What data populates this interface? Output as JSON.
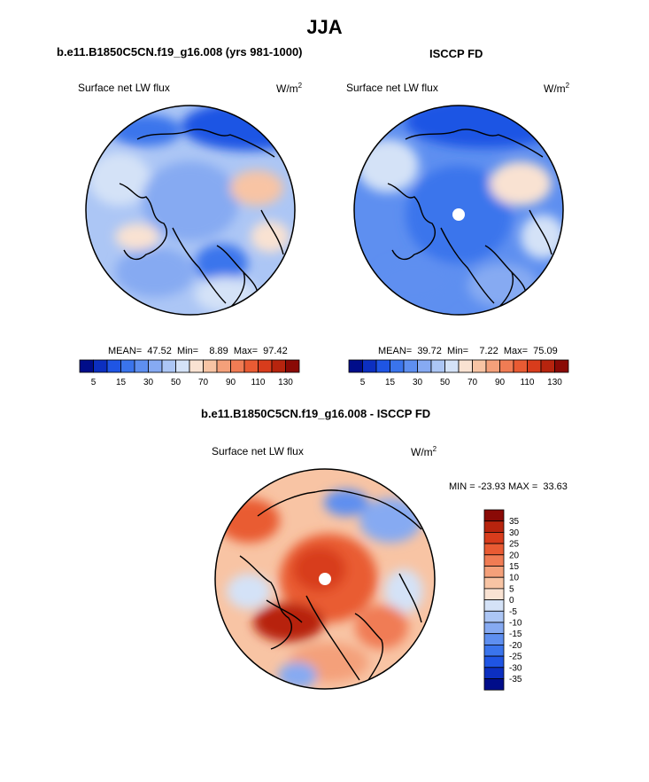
{
  "title": "JJA",
  "panels": [
    {
      "title": "b.e11.B1850C5CN.f19_g16.008 (yrs 981-1000)",
      "variable": "Surface net LW flux",
      "units": "W/m",
      "units_exp": "2",
      "stats": "MEAN=  47.52  Min=    8.89  Max=  97.42"
    },
    {
      "title": "ISCCP FD",
      "variable": "Surface net LW flux",
      "units": "W/m",
      "units_exp": "2",
      "stats": "MEAN=  39.72  Min=    7.22  Max=  75.09"
    }
  ],
  "diff_panel": {
    "title": "b.e11.B1850C5CN.f19_g16.008 - ISCCP FD",
    "variable": "Surface net LW flux",
    "units": "W/m",
    "units_exp": "2",
    "minmax": "MIN = -23.93 MAX =  33.63"
  },
  "chart_data": [
    {
      "type": "heatmap",
      "projection": "north polar stereographic",
      "title": "b.e11.B1850C5CN.f19_g16.008 (yrs 981-1000)",
      "variable": "Surface net LW flux",
      "units": "W/m^2",
      "mean": 47.52,
      "min": 8.89,
      "max": 97.42,
      "colorbar_levels": [
        5,
        10,
        15,
        20,
        30,
        40,
        50,
        60,
        70,
        80,
        90,
        100,
        110,
        120,
        130
      ],
      "colorbar_tick_labels": [
        "5",
        "15",
        "30",
        "50",
        "70",
        "90",
        "110",
        "130"
      ],
      "colorbar_colors": [
        "#000d8a",
        "#0c2fc0",
        "#1f55e4",
        "#3a74ec",
        "#5e8ff0",
        "#86aaf2",
        "#acc6f5",
        "#d4e2f7",
        "#f9e2d2",
        "#f8c4a4",
        "#f4a07a",
        "#f07c54",
        "#e95b33",
        "#d83c1c",
        "#b7240e",
        "#8a0a06"
      ]
    },
    {
      "type": "heatmap",
      "projection": "north polar stereographic",
      "title": "ISCCP FD",
      "variable": "Surface net LW flux",
      "units": "W/m^2",
      "mean": 39.72,
      "min": 7.22,
      "max": 75.09,
      "colorbar_levels": [
        5,
        10,
        15,
        20,
        30,
        40,
        50,
        60,
        70,
        80,
        90,
        100,
        110,
        120,
        130
      ],
      "colorbar_tick_labels": [
        "5",
        "15",
        "30",
        "50",
        "70",
        "90",
        "110",
        "130"
      ],
      "colorbar_colors": [
        "#000d8a",
        "#0c2fc0",
        "#1f55e4",
        "#3a74ec",
        "#5e8ff0",
        "#86aaf2",
        "#acc6f5",
        "#d4e2f7",
        "#f9e2d2",
        "#f8c4a4",
        "#f4a07a",
        "#f07c54",
        "#e95b33",
        "#d83c1c",
        "#b7240e",
        "#8a0a06"
      ]
    },
    {
      "type": "heatmap",
      "projection": "north polar stereographic",
      "title": "b.e11.B1850C5CN.f19_g16.008 - ISCCP FD",
      "variable": "Surface net LW flux",
      "units": "W/m^2",
      "min": -23.93,
      "max": 33.63,
      "colorbar_levels": [
        -35,
        -30,
        -25,
        -20,
        -15,
        -10,
        -5,
        0,
        5,
        10,
        15,
        20,
        25,
        30,
        35
      ],
      "colorbar_tick_labels": [
        "35",
        "30",
        "25",
        "20",
        "15",
        "10",
        "5",
        "0",
        "-5",
        "-10",
        "-15",
        "-20",
        "-25",
        "-30",
        "-35"
      ],
      "colorbar_colors": [
        "#8a0a06",
        "#b7240e",
        "#d83c1c",
        "#e95b33",
        "#f07c54",
        "#f4a07a",
        "#f8c4a4",
        "#f9e2d2",
        "#d4e2f7",
        "#acc6f5",
        "#86aaf2",
        "#5e8ff0",
        "#3a74ec",
        "#1f55e4",
        "#0c2fc0",
        "#000d8a"
      ]
    }
  ]
}
